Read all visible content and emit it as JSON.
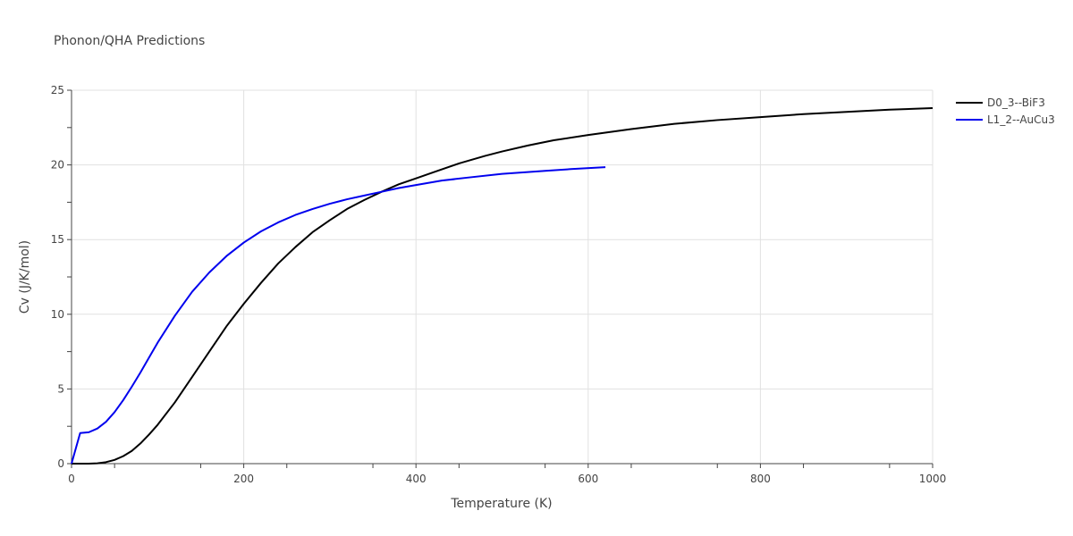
{
  "chart_data": {
    "type": "line",
    "title": "Phonon/QHA Predictions",
    "xlabel": "Temperature (K)",
    "ylabel": "Cv (J/K/mol)",
    "xlim": [
      0,
      1000
    ],
    "ylim": [
      0,
      25
    ],
    "grid": true,
    "legend_position": "top-right",
    "x_ticks": [
      0,
      200,
      400,
      600,
      800,
      1000
    ],
    "y_ticks": [
      0,
      5,
      10,
      15,
      20,
      25
    ],
    "series": [
      {
        "name": "D0_3--BiF3",
        "color": "#000000",
        "x": [
          0,
          10,
          20,
          30,
          40,
          50,
          60,
          70,
          80,
          90,
          100,
          120,
          140,
          160,
          180,
          200,
          220,
          240,
          260,
          280,
          300,
          320,
          340,
          360,
          380,
          400,
          420,
          450,
          480,
          500,
          530,
          560,
          600,
          650,
          700,
          750,
          800,
          850,
          900,
          950,
          1000
        ],
        "y": [
          0,
          0,
          0,
          0.02,
          0.1,
          0.25,
          0.5,
          0.85,
          1.35,
          1.95,
          2.6,
          4.1,
          5.8,
          7.5,
          9.2,
          10.7,
          12.1,
          13.4,
          14.5,
          15.5,
          16.3,
          17.05,
          17.65,
          18.2,
          18.7,
          19.1,
          19.5,
          20.1,
          20.6,
          20.9,
          21.3,
          21.65,
          22.0,
          22.4,
          22.75,
          23.0,
          23.2,
          23.4,
          23.55,
          23.7,
          23.8
        ]
      },
      {
        "name": "L1_2--AuCu3",
        "color": "#0000ee",
        "x": [
          0,
          10,
          20,
          30,
          40,
          50,
          60,
          70,
          80,
          90,
          100,
          120,
          140,
          160,
          180,
          200,
          220,
          240,
          260,
          280,
          300,
          320,
          340,
          360,
          380,
          400,
          430,
          460,
          500,
          550,
          580,
          620
        ],
        "y": [
          0,
          2.05,
          2.1,
          2.35,
          2.8,
          3.45,
          4.25,
          5.15,
          6.1,
          7.1,
          8.1,
          9.9,
          11.5,
          12.8,
          13.9,
          14.8,
          15.55,
          16.15,
          16.65,
          17.05,
          17.4,
          17.7,
          17.95,
          18.2,
          18.45,
          18.65,
          18.95,
          19.15,
          19.4,
          19.6,
          19.72,
          19.85
        ]
      }
    ]
  }
}
